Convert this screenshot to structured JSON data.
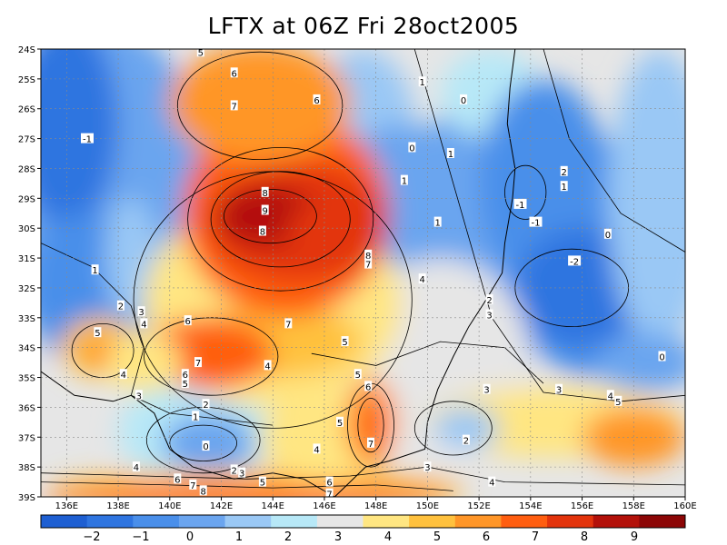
{
  "chart_data": {
    "type": "heatmap",
    "title": "LFTX at 06Z Fri 28oct2005",
    "x_ticks": [
      "136E",
      "138E",
      "140E",
      "142E",
      "144E",
      "146E",
      "148E",
      "150E",
      "152E",
      "154E",
      "156E",
      "158E",
      "160E"
    ],
    "y_ticks": [
      "24S",
      "25S",
      "26S",
      "27S",
      "28S",
      "29S",
      "30S",
      "31S",
      "32S",
      "33S",
      "34S",
      "35S",
      "36S",
      "37S",
      "38S",
      "39S"
    ],
    "xlim": [
      135,
      160
    ],
    "ylim": [
      -39,
      -24
    ],
    "grid": true,
    "colorbar": {
      "labels": [
        "-2",
        "-1",
        "0",
        "1",
        "2",
        "3",
        "4",
        "5",
        "6",
        "7",
        "8",
        "9"
      ],
      "edges": [
        -2.5,
        -2,
        -1.5,
        -1,
        0,
        1,
        2,
        3,
        4,
        5,
        6,
        7,
        8,
        9,
        10
      ],
      "colors": [
        "#1e5fd2",
        "#2f75e0",
        "#4a8fea",
        "#6ba5ef",
        "#9ac8f5",
        "#b7e8f7",
        "#e6e6e6",
        "#ffe682",
        "#ffc13e",
        "#ff9628",
        "#ff5e10",
        "#e3340c",
        "#b3110a",
        "#8c0606"
      ]
    },
    "contour_labels": [
      {
        "v": "5",
        "lon": 141.2,
        "lat": -24.1
      },
      {
        "v": "6",
        "lon": 142.5,
        "lat": -24.8
      },
      {
        "v": "7",
        "lon": 142.5,
        "lat": -25.9
      },
      {
        "v": "6",
        "lon": 145.7,
        "lat": -25.7
      },
      {
        "v": "1",
        "lon": 149.8,
        "lat": -25.1
      },
      {
        "v": "0",
        "lon": 151.4,
        "lat": -25.7
      },
      {
        "v": "0",
        "lon": 149.4,
        "lat": -27.3
      },
      {
        "v": "1",
        "lon": 150.9,
        "lat": -27.5
      },
      {
        "v": "-1",
        "lon": 136.8,
        "lat": -27.0
      },
      {
        "v": "8",
        "lon": 143.7,
        "lat": -28.8
      },
      {
        "v": "9",
        "lon": 143.7,
        "lat": -29.4
      },
      {
        "v": "1",
        "lon": 149.1,
        "lat": -28.4
      },
      {
        "v": "2",
        "lon": 155.3,
        "lat": -28.1
      },
      {
        "v": "1",
        "lon": 155.3,
        "lat": -28.6
      },
      {
        "v": "-1",
        "lon": 153.6,
        "lat": -29.2
      },
      {
        "v": "-1",
        "lon": 154.2,
        "lat": -29.8
      },
      {
        "v": "1",
        "lon": 150.4,
        "lat": -29.8
      },
      {
        "v": "0",
        "lon": 157.0,
        "lat": -30.2
      },
      {
        "v": "8",
        "lon": 143.6,
        "lat": -30.1
      },
      {
        "v": "8",
        "lon": 147.7,
        "lat": -30.9
      },
      {
        "v": "7",
        "lon": 147.7,
        "lat": -31.2
      },
      {
        "v": "-2",
        "lon": 155.7,
        "lat": -31.1
      },
      {
        "v": "1",
        "lon": 137.1,
        "lat": -31.4
      },
      {
        "v": "4",
        "lon": 149.8,
        "lat": -31.7
      },
      {
        "v": "2",
        "lon": 138.1,
        "lat": -32.6
      },
      {
        "v": "3",
        "lon": 138.9,
        "lat": -32.8
      },
      {
        "v": "4",
        "lon": 139.0,
        "lat": -33.2
      },
      {
        "v": "6",
        "lon": 140.7,
        "lat": -33.1
      },
      {
        "v": "7",
        "lon": 144.6,
        "lat": -33.2
      },
      {
        "v": "2",
        "lon": 152.4,
        "lat": -32.4
      },
      {
        "v": "3",
        "lon": 152.4,
        "lat": -32.9
      },
      {
        "v": "5",
        "lon": 137.2,
        "lat": -33.5
      },
      {
        "v": "5",
        "lon": 146.8,
        "lat": -33.8
      },
      {
        "v": "7",
        "lon": 141.1,
        "lat": -34.5
      },
      {
        "v": "4",
        "lon": 143.8,
        "lat": -34.6
      },
      {
        "v": "6",
        "lon": 140.6,
        "lat": -34.9
      },
      {
        "v": "5",
        "lon": 140.6,
        "lat": -35.2
      },
      {
        "v": "4",
        "lon": 138.2,
        "lat": -34.9
      },
      {
        "v": "5",
        "lon": 147.3,
        "lat": -34.9
      },
      {
        "v": "6",
        "lon": 147.7,
        "lat": -35.3
      },
      {
        "v": "0",
        "lon": 159.1,
        "lat": -34.3
      },
      {
        "v": "3",
        "lon": 152.3,
        "lat": -35.4
      },
      {
        "v": "3",
        "lon": 155.1,
        "lat": -35.4
      },
      {
        "v": "4",
        "lon": 157.1,
        "lat": -35.6
      },
      {
        "v": "5",
        "lon": 157.4,
        "lat": -35.8
      },
      {
        "v": "3",
        "lon": 138.8,
        "lat": -35.6
      },
      {
        "v": "2",
        "lon": 141.4,
        "lat": -35.9
      },
      {
        "v": "1",
        "lon": 141.0,
        "lat": -36.3
      },
      {
        "v": "5",
        "lon": 146.6,
        "lat": -36.5
      },
      {
        "v": "0",
        "lon": 141.4,
        "lat": -37.3
      },
      {
        "v": "7",
        "lon": 147.8,
        "lat": -37.2
      },
      {
        "v": "2",
        "lon": 151.5,
        "lat": -37.1
      },
      {
        "v": "4",
        "lon": 145.7,
        "lat": -37.4
      },
      {
        "v": "2",
        "lon": 142.5,
        "lat": -38.1
      },
      {
        "v": "3",
        "lon": 142.8,
        "lat": -38.2
      },
      {
        "v": "4",
        "lon": 138.7,
        "lat": -38.0
      },
      {
        "v": "5",
        "lon": 143.6,
        "lat": -38.5
      },
      {
        "v": "3",
        "lon": 150.0,
        "lat": -38.0
      },
      {
        "v": "4",
        "lon": 152.5,
        "lat": -38.5
      },
      {
        "v": "6",
        "lon": 140.3,
        "lat": -38.4
      },
      {
        "v": "7",
        "lon": 140.9,
        "lat": -38.6
      },
      {
        "v": "8",
        "lon": 141.3,
        "lat": -38.8
      },
      {
        "v": "6",
        "lon": 146.2,
        "lat": -38.5
      },
      {
        "v": "7",
        "lon": 146.2,
        "lat": -38.9
      }
    ]
  }
}
